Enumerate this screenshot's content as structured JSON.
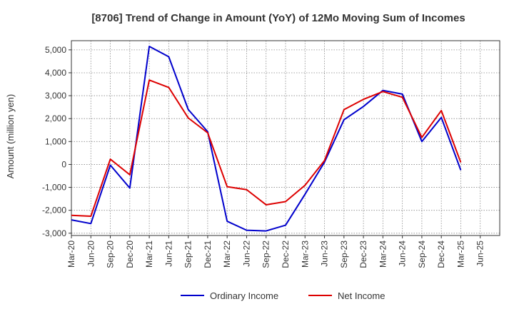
{
  "chart_data": {
    "type": "line",
    "title": "[8706]  Trend of Change in Amount (YoY) of 12Mo Moving Sum of Incomes",
    "ylabel": "Amount (million yen)",
    "xlabel": "",
    "categories": [
      "Mar-20",
      "Jun-20",
      "Sep-20",
      "Dec-20",
      "Mar-21",
      "Jun-21",
      "Sep-21",
      "Dec-21",
      "Mar-22",
      "Jun-22",
      "Sep-22",
      "Dec-22",
      "Mar-23",
      "Jun-23",
      "Sep-23",
      "Dec-23",
      "Mar-24",
      "Jun-24",
      "Sep-24",
      "Dec-24",
      "Mar-25",
      "Jun-25"
    ],
    "ylim": [
      -3100,
      5400
    ],
    "yticks": [
      -3000,
      -2000,
      -1000,
      0,
      1000,
      2000,
      3000,
      4000,
      5000
    ],
    "ytick_labels": [
      "-3,000",
      "-2,000",
      "-1,000",
      "0",
      "1,000",
      "2,000",
      "3,000",
      "4,000",
      "5,000"
    ],
    "grid": true,
    "legend_position": "bottom",
    "series": [
      {
        "name": "Ordinary Income",
        "color": "#0000cc",
        "values": [
          -2420,
          -2580,
          -30,
          -1030,
          5150,
          4700,
          2400,
          1430,
          -2480,
          -2870,
          -2900,
          -2650,
          -1300,
          100,
          1950,
          2530,
          3230,
          3070,
          1000,
          2050,
          -250,
          null
        ]
      },
      {
        "name": "Net Income",
        "color": "#dd0000",
        "values": [
          -2220,
          -2260,
          230,
          -450,
          3680,
          3360,
          2030,
          1380,
          -970,
          -1100,
          -1760,
          -1620,
          -910,
          170,
          2390,
          2840,
          3180,
          2930,
          1180,
          2350,
          90,
          null
        ]
      }
    ]
  }
}
